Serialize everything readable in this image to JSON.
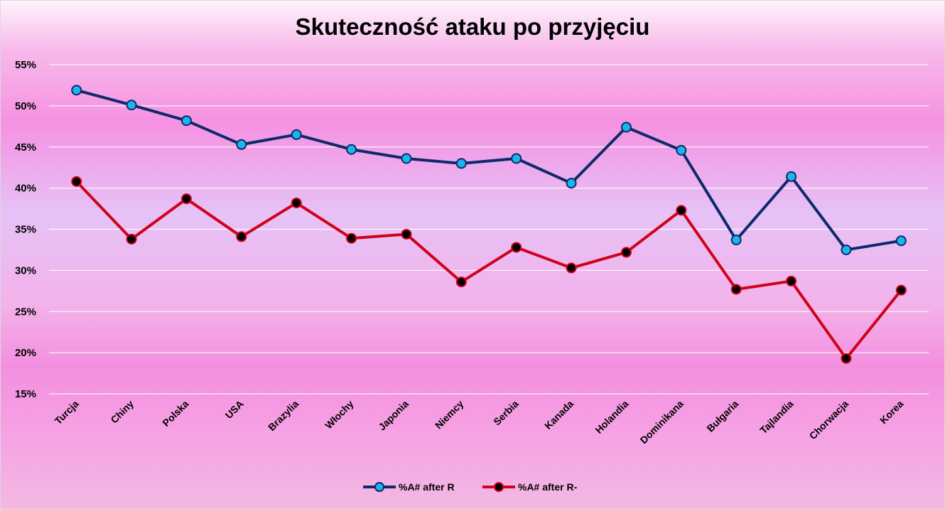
{
  "chart_data": {
    "type": "line",
    "title": "Skuteczność ataku po przyjęciu",
    "xlabel": "",
    "ylabel": "",
    "ylim": [
      15,
      55
    ],
    "yticks": [
      "15%",
      "20%",
      "25%",
      "30%",
      "35%",
      "40%",
      "45%",
      "50%",
      "55%"
    ],
    "grid": true,
    "legend_position": "bottom",
    "categories": [
      "Turcja",
      "Chiny",
      "Polska",
      "USA",
      "Brazylia",
      "Włochy",
      "Japonia",
      "Niemcy",
      "Serbia",
      "Kanada",
      "Holandia",
      "Dominikana",
      "Bułgaria",
      "Tajlandia",
      "Chorwacja",
      "Korea"
    ],
    "series": [
      {
        "name": "%A# after R",
        "line_color": "#0e2a6b",
        "marker_color": "#19b5ec",
        "values": [
          51.9,
          50.1,
          48.2,
          45.3,
          46.5,
          44.7,
          43.6,
          43.0,
          43.6,
          40.6,
          47.4,
          44.6,
          33.7,
          41.4,
          32.5,
          33.6
        ]
      },
      {
        "name": "%A# after R-",
        "line_color": "#d0021b",
        "marker_color": "#000000",
        "values": [
          40.8,
          33.8,
          38.7,
          34.1,
          38.2,
          33.9,
          34.4,
          28.6,
          32.8,
          30.3,
          32.2,
          37.3,
          27.7,
          28.7,
          19.3,
          27.6
        ]
      }
    ]
  }
}
